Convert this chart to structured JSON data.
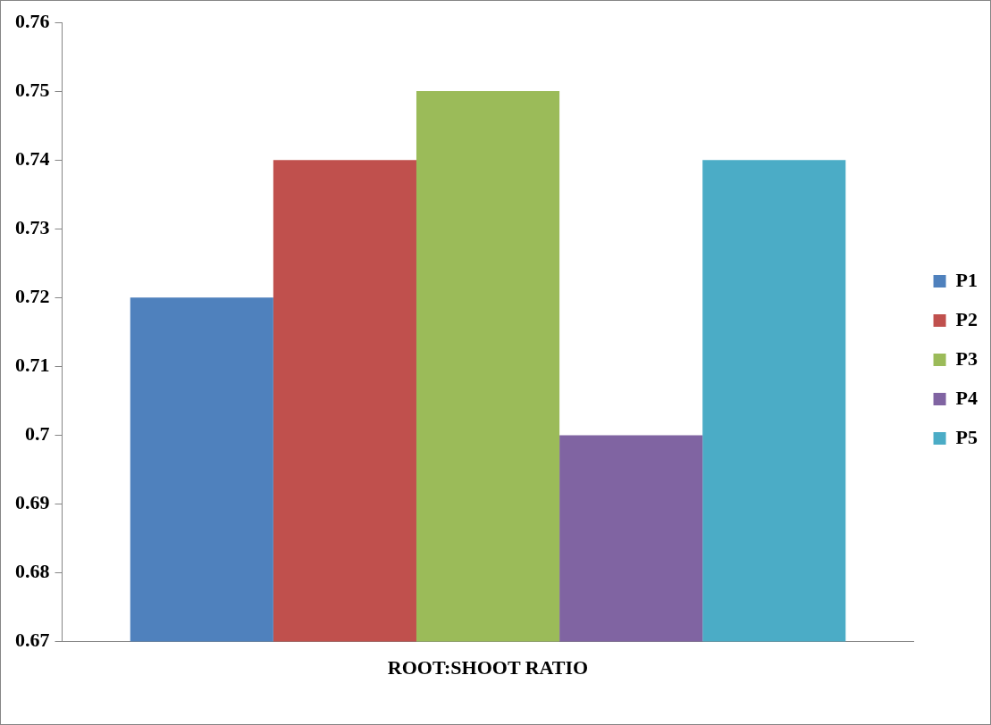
{
  "chart_data": {
    "type": "bar",
    "categories": [
      "ROOT:SHOOT RATIO"
    ],
    "series": [
      {
        "name": "P1",
        "color": "#4f81bd",
        "values": [
          0.72
        ]
      },
      {
        "name": "P2",
        "color": "#c0504d",
        "values": [
          0.74
        ]
      },
      {
        "name": "P3",
        "color": "#9bbb59",
        "values": [
          0.75
        ]
      },
      {
        "name": "P4",
        "color": "#8064a2",
        "values": [
          0.7
        ]
      },
      {
        "name": "P5",
        "color": "#4bacc6",
        "values": [
          0.74
        ]
      }
    ],
    "ylim": [
      0.67,
      0.76
    ],
    "yticks": [
      0.67,
      0.68,
      0.69,
      0.7,
      0.71,
      0.72,
      0.73,
      0.74,
      0.75,
      0.76
    ],
    "grid": false,
    "legend": "right"
  }
}
